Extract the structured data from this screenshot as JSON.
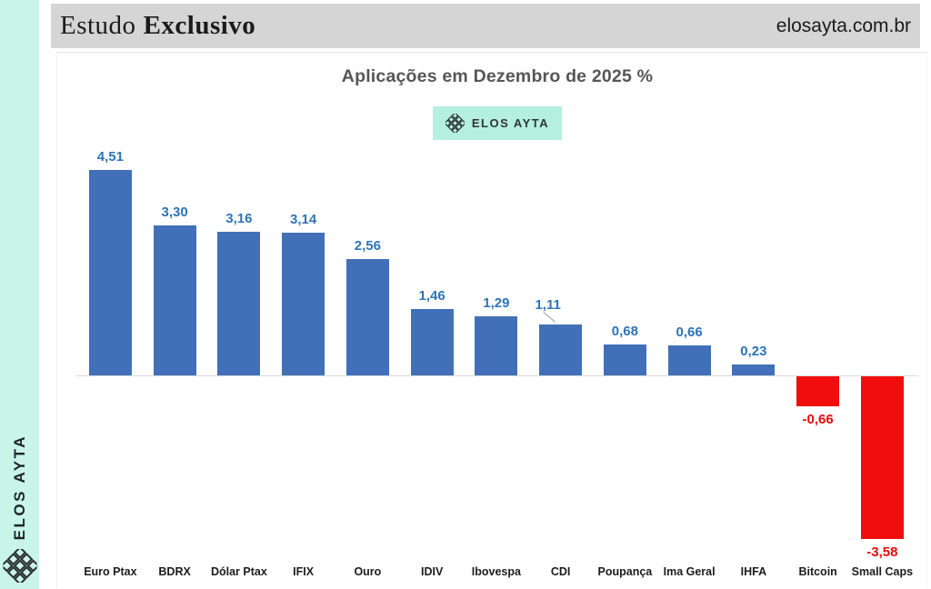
{
  "sidebar": {
    "brand": "ELOS AYTA"
  },
  "header": {
    "title_word1": "Estudo",
    "title_word2": "Exclusivo",
    "site": "elosayta.com.br"
  },
  "chart": {
    "badge_label": "ELOS AYTA"
  },
  "colors": {
    "sidebar_bg": "#c9f5e9",
    "badge_bg": "#b4f0dd",
    "header_bg": "#d5d5d5",
    "bar_positive": "#4170b8",
    "bar_negative": "#f20d0d",
    "label_positive": "#2e74b5",
    "label_negative": "#e60b0b",
    "axis_line": "#d9d9d9"
  },
  "chart_data": {
    "type": "bar",
    "title": "Aplicações em Dezembro de 2025 %",
    "categories": [
      "Euro Ptax",
      "BDRX",
      "Dólar Ptax",
      "IFIX",
      "Ouro",
      "IDIV",
      "Ibovespa",
      "CDI",
      "Poupança",
      "Ima Geral",
      "IHFA",
      "Bitcoin",
      "Small Caps"
    ],
    "values": [
      4.51,
      3.3,
      3.16,
      3.14,
      2.56,
      1.46,
      1.29,
      1.11,
      0.68,
      0.66,
      0.23,
      -0.66,
      -3.58
    ],
    "value_labels": [
      "4,51",
      "3,30",
      "3,16",
      "3,14",
      "2,56",
      "1,46",
      "1,29",
      "1,11",
      "0,68",
      "0,66",
      "0,23",
      "-0,66",
      "-3,58"
    ],
    "callout_index": 7,
    "xlabel": "",
    "ylabel": "",
    "ylim": [
      -4,
      5
    ],
    "grid": false,
    "legend": false,
    "baseline": 0
  }
}
